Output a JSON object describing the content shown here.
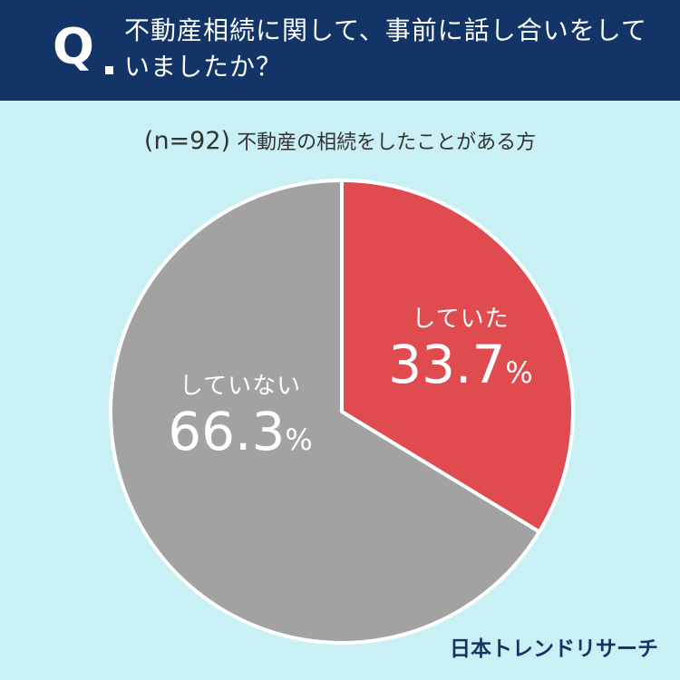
{
  "header": {
    "q_letter": "Q",
    "question": "不動産相続に関して、事前に話し合いをして\nいましたか？"
  },
  "subtitle": {
    "n_label": "(n=92)",
    "text": " 不動産の相続をしたことがある方"
  },
  "chart_data": {
    "type": "pie",
    "title": "",
    "slices": [
      {
        "label": "していた",
        "value": 33.7,
        "color": "#df4b4e"
      },
      {
        "label": "していない",
        "value": 66.3,
        "color": "#a2a2a2"
      }
    ],
    "unit": "%",
    "start_angle_deg": 0,
    "direction": "clockwise"
  },
  "labels": {
    "yes": {
      "name": "していた",
      "number": "33.7",
      "unit": "%"
    },
    "no": {
      "name": "していない",
      "number": "66.3",
      "unit": "%"
    }
  },
  "footer": {
    "logo": "日本トレンドリサーチ"
  }
}
